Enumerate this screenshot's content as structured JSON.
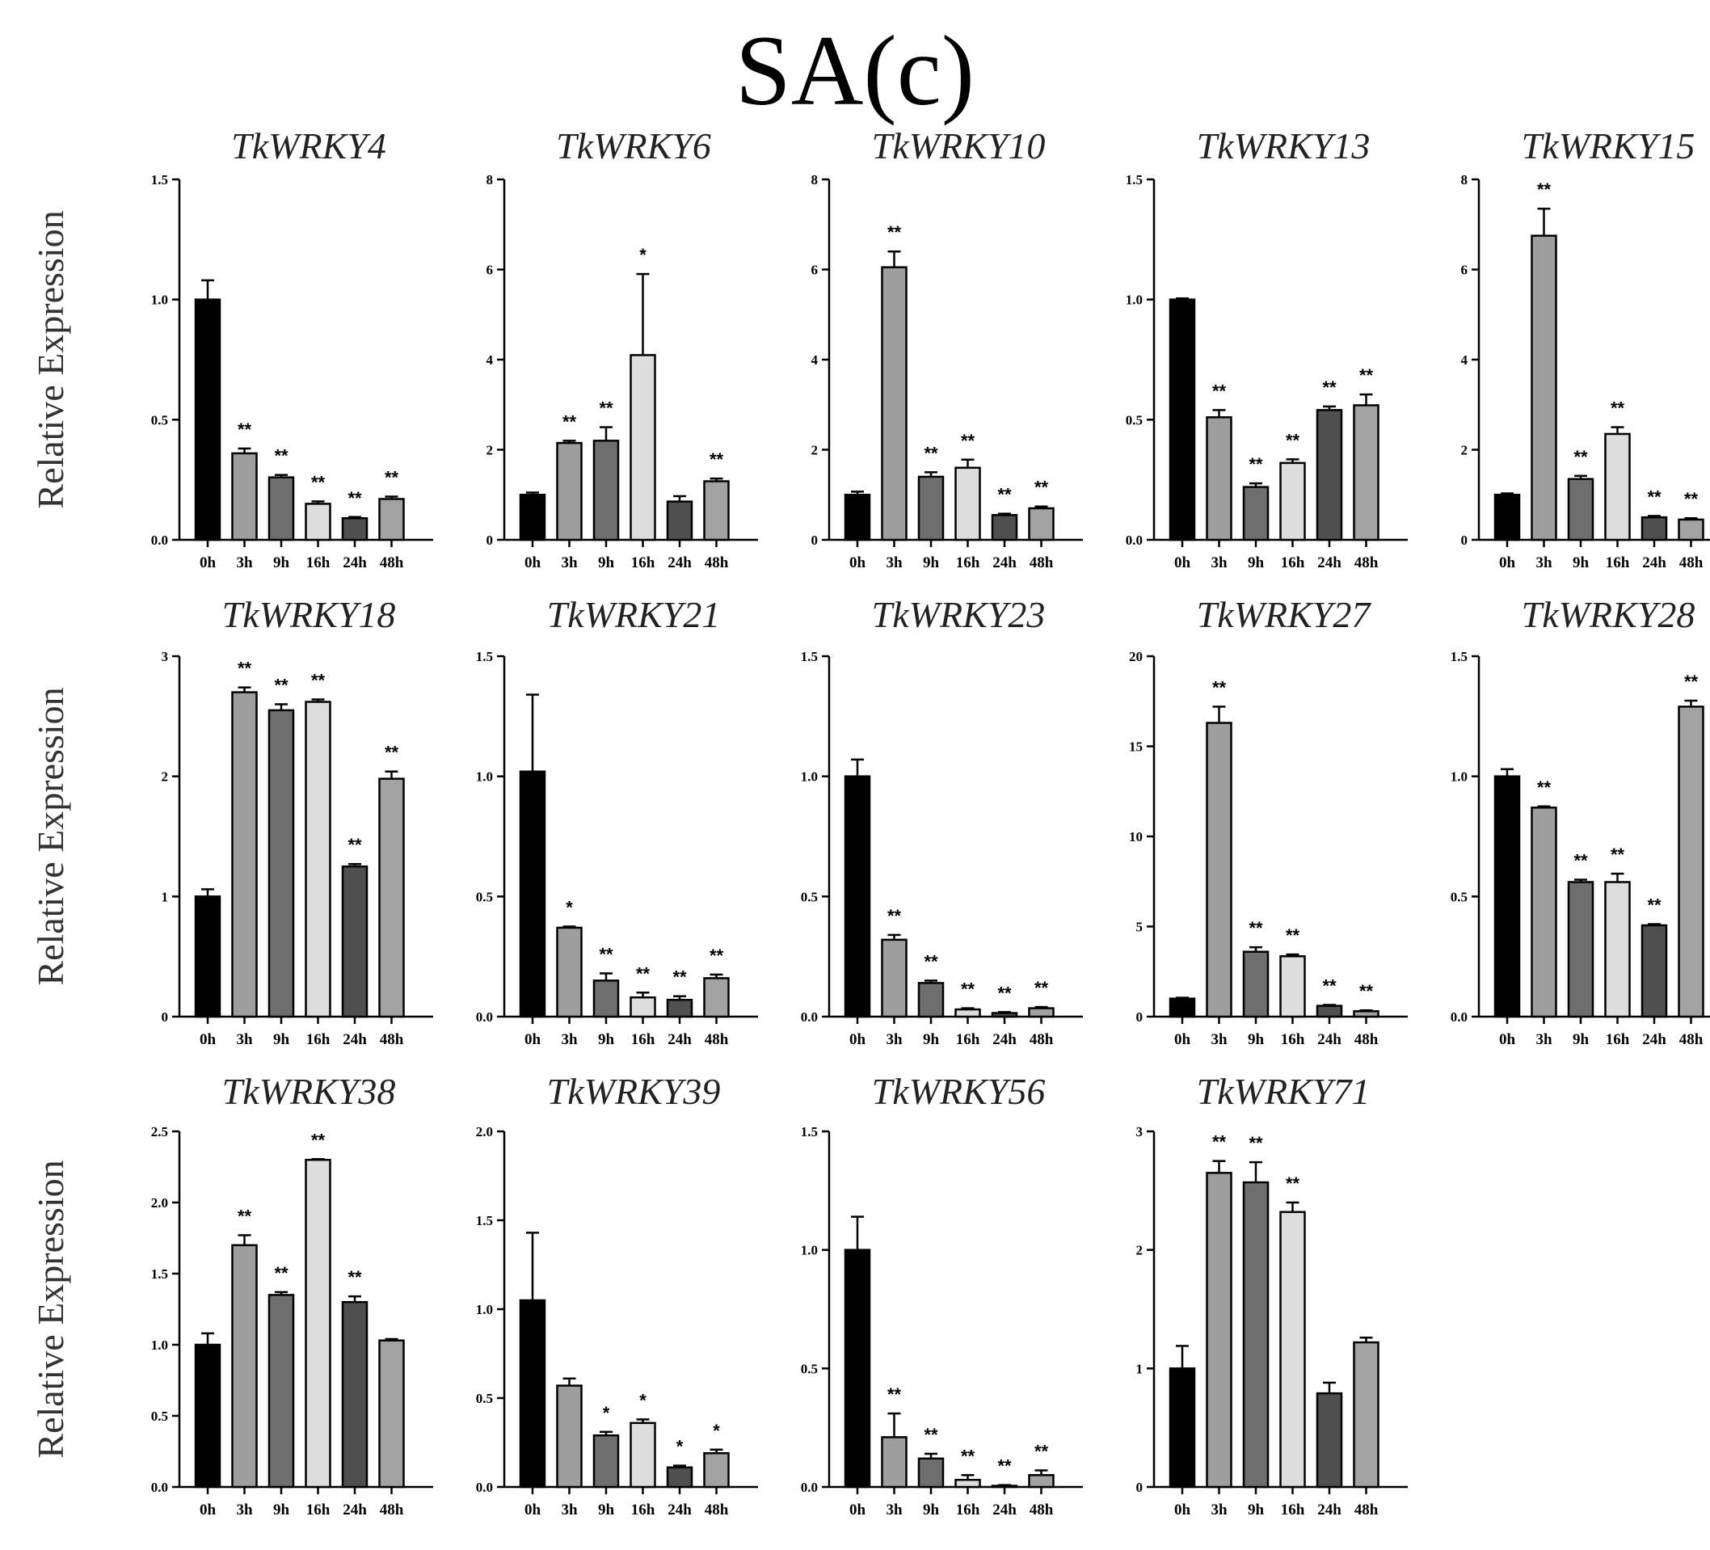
{
  "main_title": "SA(c)",
  "ylabel": "Relative Expression",
  "x_categories": [
    "0h",
    "3h",
    "9h",
    "16h",
    "24h",
    "48h"
  ],
  "bar_colors": [
    "#000000",
    "#9e9e9e",
    "#6e6e6e",
    "#dddddd",
    "#4f4f4f",
    "#a2a2a2"
  ],
  "chart_data": [
    {
      "type": "bar",
      "title": "TkWRKY4",
      "ylim": [
        0,
        1.5
      ],
      "yticks": [
        "0.0",
        "0.5",
        "1.0",
        "1.5"
      ],
      "values": [
        1.0,
        0.36,
        0.26,
        0.15,
        0.09,
        0.17
      ],
      "errors": [
        0.08,
        0.02,
        0.01,
        0.01,
        0.005,
        0.01
      ],
      "sig": [
        "",
        "**",
        "**",
        "**",
        "**",
        "**"
      ]
    },
    {
      "type": "bar",
      "title": "TkWRKY6",
      "ylim": [
        0,
        8
      ],
      "yticks": [
        "0",
        "2",
        "4",
        "6",
        "8"
      ],
      "values": [
        1.0,
        2.15,
        2.2,
        4.1,
        0.85,
        1.3
      ],
      "errors": [
        0.05,
        0.05,
        0.3,
        1.8,
        0.12,
        0.06
      ],
      "sig": [
        "",
        "**",
        "**",
        "*",
        "",
        "**"
      ]
    },
    {
      "type": "bar",
      "title": "TkWRKY10",
      "ylim": [
        0,
        8
      ],
      "yticks": [
        "0",
        "2",
        "4",
        "6",
        "8"
      ],
      "values": [
        1.0,
        6.05,
        1.4,
        1.6,
        0.55,
        0.7
      ],
      "errors": [
        0.07,
        0.35,
        0.1,
        0.18,
        0.03,
        0.04
      ],
      "sig": [
        "",
        "**",
        "**",
        "**",
        "**",
        "**"
      ]
    },
    {
      "type": "bar",
      "title": "TkWRKY13",
      "ylim": [
        0,
        1.5
      ],
      "yticks": [
        "0.0",
        "0.5",
        "1.0",
        "1.5"
      ],
      "values": [
        1.0,
        0.51,
        0.22,
        0.32,
        0.54,
        0.56
      ],
      "errors": [
        0.005,
        0.03,
        0.015,
        0.015,
        0.015,
        0.045
      ],
      "sig": [
        "",
        "**",
        "**",
        "**",
        "**",
        "**"
      ]
    },
    {
      "type": "bar",
      "title": "TkWRKY15",
      "ylim": [
        0,
        8
      ],
      "yticks": [
        "0",
        "2",
        "4",
        "6",
        "8"
      ],
      "values": [
        1.0,
        6.75,
        1.35,
        2.35,
        0.5,
        0.45
      ],
      "errors": [
        0.03,
        0.6,
        0.07,
        0.15,
        0.03,
        0.03
      ],
      "sig": [
        "",
        "**",
        "**",
        "**",
        "**",
        "**"
      ]
    },
    {
      "type": "bar",
      "title": "TkWRKY18",
      "ylim": [
        0,
        3
      ],
      "yticks": [
        "0",
        "1",
        "2",
        "3"
      ],
      "values": [
        1.0,
        2.7,
        2.55,
        2.62,
        1.25,
        1.98
      ],
      "errors": [
        0.06,
        0.04,
        0.05,
        0.02,
        0.02,
        0.06
      ],
      "sig": [
        "",
        "**",
        "**",
        "**",
        "**",
        "**"
      ]
    },
    {
      "type": "bar",
      "title": "TkWRKY21",
      "ylim": [
        0,
        1.5
      ],
      "yticks": [
        "0.0",
        "0.5",
        "1.0",
        "1.5"
      ],
      "values": [
        1.02,
        0.37,
        0.15,
        0.08,
        0.07,
        0.16
      ],
      "errors": [
        0.32,
        0.005,
        0.03,
        0.02,
        0.015,
        0.015
      ],
      "sig": [
        "",
        "*",
        "**",
        "**",
        "**",
        "**"
      ]
    },
    {
      "type": "bar",
      "title": "TkWRKY23",
      "ylim": [
        0,
        1.5
      ],
      "yticks": [
        "0.0",
        "0.5",
        "1.0",
        "1.5"
      ],
      "values": [
        1.0,
        0.32,
        0.14,
        0.03,
        0.015,
        0.035
      ],
      "errors": [
        0.07,
        0.02,
        0.01,
        0.005,
        0.004,
        0.005
      ],
      "sig": [
        "",
        "**",
        "**",
        "**",
        "**",
        "**"
      ]
    },
    {
      "type": "bar",
      "title": "TkWRKY27",
      "ylim": [
        0,
        20
      ],
      "yticks": [
        "0",
        "5",
        "10",
        "15",
        "20"
      ],
      "values": [
        1.0,
        16.3,
        3.6,
        3.35,
        0.6,
        0.3
      ],
      "errors": [
        0.05,
        0.9,
        0.25,
        0.1,
        0.05,
        0.05
      ],
      "sig": [
        "",
        "**",
        "**",
        "**",
        "**",
        "**"
      ]
    },
    {
      "type": "bar",
      "title": "TkWRKY28",
      "ylim": [
        0,
        1.5
      ],
      "yticks": [
        "0.0",
        "0.5",
        "1.0",
        "1.5"
      ],
      "values": [
        1.0,
        0.87,
        0.56,
        0.56,
        0.38,
        1.29
      ],
      "errors": [
        0.03,
        0.005,
        0.01,
        0.035,
        0.005,
        0.025
      ],
      "sig": [
        "",
        "**",
        "**",
        "**",
        "**",
        "**"
      ]
    },
    {
      "type": "bar",
      "title": "TkWRKY38",
      "ylim": [
        0,
        2.5
      ],
      "yticks": [
        "0.0",
        "0.5",
        "1.0",
        "1.5",
        "2.0",
        "2.5"
      ],
      "values": [
        1.0,
        1.7,
        1.35,
        2.3,
        1.3,
        1.03
      ],
      "errors": [
        0.08,
        0.07,
        0.02,
        0.005,
        0.04,
        0.01
      ],
      "sig": [
        "",
        "**",
        "**",
        "**",
        "**",
        ""
      ]
    },
    {
      "type": "bar",
      "title": "TkWRKY39",
      "ylim": [
        0,
        2.0
      ],
      "yticks": [
        "0.0",
        "0.5",
        "1.0",
        "1.5",
        "2.0"
      ],
      "values": [
        1.05,
        0.57,
        0.29,
        0.36,
        0.11,
        0.19
      ],
      "errors": [
        0.38,
        0.04,
        0.02,
        0.02,
        0.01,
        0.02
      ],
      "sig": [
        "",
        "",
        "*",
        "*",
        "*",
        "*"
      ]
    },
    {
      "type": "bar",
      "title": "TkWRKY56",
      "ylim": [
        0,
        1.5
      ],
      "yticks": [
        "0.0",
        "0.5",
        "1.0",
        "1.5"
      ],
      "values": [
        1.0,
        0.21,
        0.12,
        0.03,
        0.005,
        0.05
      ],
      "errors": [
        0.14,
        0.1,
        0.02,
        0.02,
        0.003,
        0.02
      ],
      "sig": [
        "",
        "**",
        "**",
        "**",
        "**",
        "**"
      ]
    },
    {
      "type": "bar",
      "title": "TkWRKY71",
      "ylim": [
        0,
        3
      ],
      "yticks": [
        "0",
        "1",
        "2",
        "3"
      ],
      "values": [
        1.0,
        2.65,
        2.57,
        2.32,
        0.79,
        1.22
      ],
      "errors": [
        0.19,
        0.1,
        0.17,
        0.08,
        0.09,
        0.04
      ],
      "sig": [
        "",
        "**",
        "**",
        "**",
        "",
        ""
      ]
    }
  ]
}
